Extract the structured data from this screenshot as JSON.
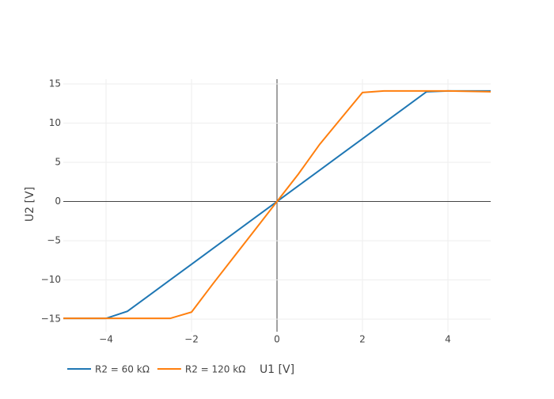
{
  "chart_data": {
    "type": "line",
    "x_label": "U1 [V]",
    "y_label": "U2 [V]",
    "x": [
      -5,
      -4.5,
      -4,
      -3.5,
      -3,
      -2.5,
      -2,
      -1.5,
      -1,
      -0.5,
      0,
      0.5,
      1,
      1.5,
      2,
      2.5,
      3,
      3.5,
      4,
      4.5,
      5
    ],
    "series": [
      {
        "name": "R2 = 60 kΩ",
        "color": "#1f77b4",
        "values": [
          -14.9,
          -14.9,
          -14.9,
          -14,
          -12,
          -10,
          -8,
          -6,
          -4,
          -2,
          0,
          2,
          4,
          6,
          8,
          10,
          12,
          14,
          14.1,
          14.1,
          14.1
        ]
      },
      {
        "name": "R2 = 120 kΩ",
        "color": "#ff7f0e",
        "values": [
          -14.9,
          -14.9,
          -14.9,
          -14.9,
          -14.9,
          -14.9,
          -14.1,
          -10.5,
          -7,
          -3.5,
          0,
          3.5,
          7.3,
          10.6,
          13.9,
          14.1,
          14.1,
          14.1,
          14.1,
          14.05,
          14.0
        ]
      }
    ],
    "xlim": [
      -5,
      5
    ],
    "ylim": [
      -16.6,
      15.6
    ],
    "xticks": [
      {
        "value": -4,
        "label": "−4"
      },
      {
        "value": -2,
        "label": "−2"
      },
      0,
      2,
      4
    ],
    "yticks": [
      {
        "value": -15,
        "label": "−15"
      },
      {
        "value": -10,
        "label": "−10"
      },
      {
        "value": -5,
        "label": "−5"
      },
      0,
      5,
      10,
      15
    ],
    "grid": true,
    "legend": "bottom-left"
  }
}
